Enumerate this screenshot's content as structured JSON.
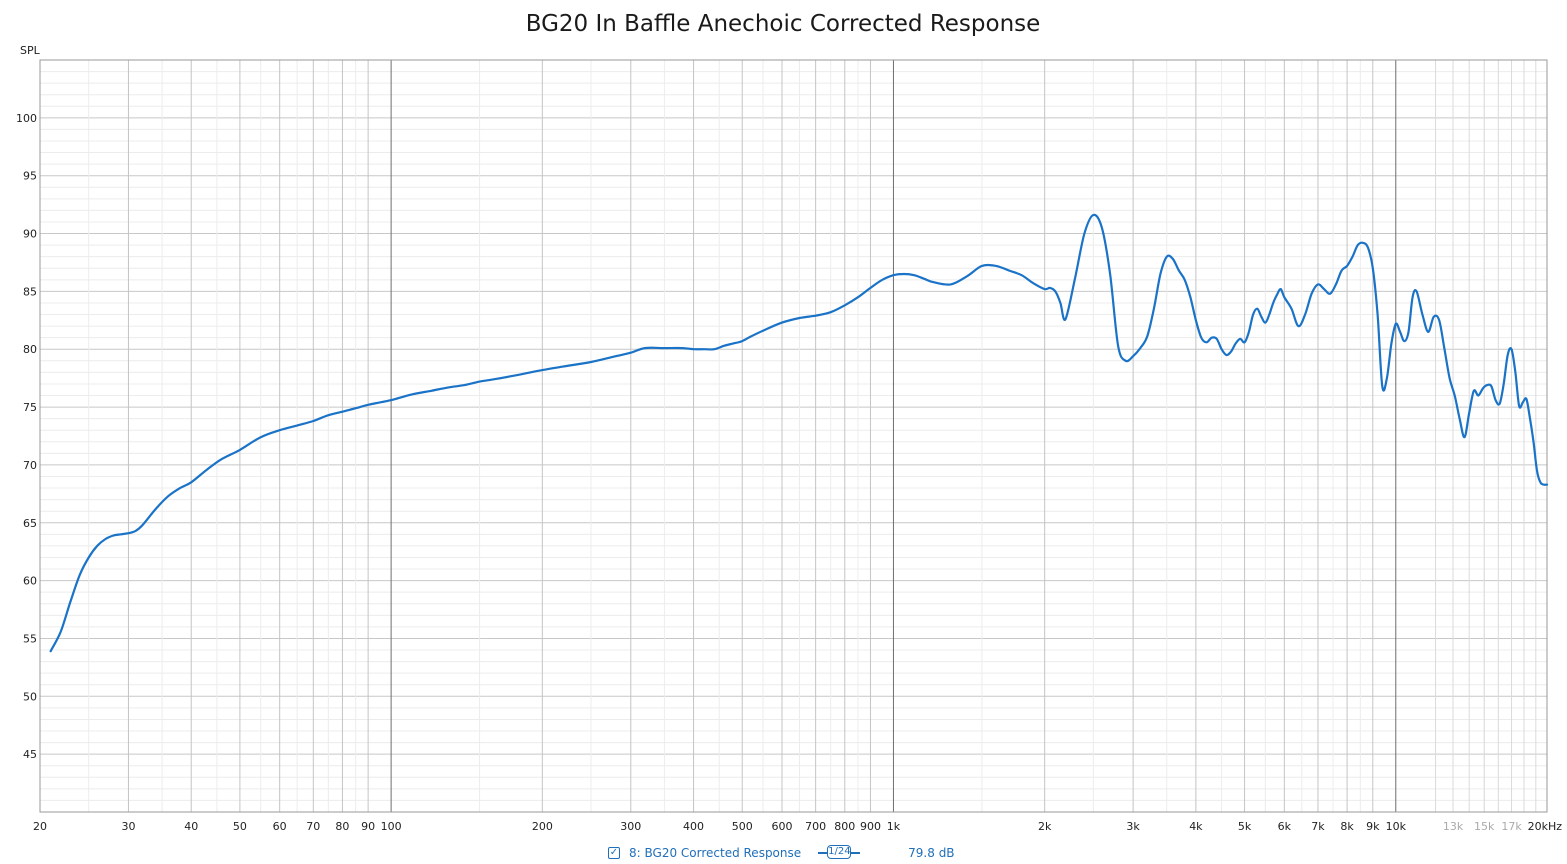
{
  "chart_data": {
    "type": "line",
    "title": "BG20 In Baffle Anechoic Corrected Response",
    "ylabel": "SPL",
    "xlabel": "",
    "x_scale": "log",
    "xlim": [
      20,
      20000
    ],
    "ylim": [
      40,
      105
    ],
    "grid": true,
    "y_ticks": [
      45,
      50,
      55,
      60,
      65,
      70,
      75,
      80,
      85,
      90,
      95,
      100
    ],
    "x_ticks": [
      {
        "v": 20,
        "label": "20"
      },
      {
        "v": 30,
        "label": "30"
      },
      {
        "v": 40,
        "label": "40"
      },
      {
        "v": 50,
        "label": "50"
      },
      {
        "v": 60,
        "label": "60"
      },
      {
        "v": 70,
        "label": "70"
      },
      {
        "v": 80,
        "label": "80"
      },
      {
        "v": 90,
        "label": "90"
      },
      {
        "v": 100,
        "label": "100"
      },
      {
        "v": 200,
        "label": "200"
      },
      {
        "v": 300,
        "label": "300"
      },
      {
        "v": 400,
        "label": "400"
      },
      {
        "v": 500,
        "label": "500"
      },
      {
        "v": 600,
        "label": "600"
      },
      {
        "v": 700,
        "label": "700"
      },
      {
        "v": 800,
        "label": "800"
      },
      {
        "v": 900,
        "label": "900"
      },
      {
        "v": 1000,
        "label": "1k"
      },
      {
        "v": 2000,
        "label": "2k"
      },
      {
        "v": 3000,
        "label": "3k"
      },
      {
        "v": 4000,
        "label": "4k"
      },
      {
        "v": 5000,
        "label": "5k"
      },
      {
        "v": 6000,
        "label": "6k"
      },
      {
        "v": 7000,
        "label": "7k"
      },
      {
        "v": 8000,
        "label": "8k"
      },
      {
        "v": 9000,
        "label": "9k"
      },
      {
        "v": 10000,
        "label": "10k"
      },
      {
        "v": 13000,
        "label": "13k",
        "light": true
      },
      {
        "v": 15000,
        "label": "15k",
        "light": true
      },
      {
        "v": 17000,
        "label": "17k",
        "light": true
      },
      {
        "v": 20000,
        "label": "20kHz"
      }
    ],
    "line_color": "#1a73c7",
    "series": [
      {
        "name": "8: BG20 Corrected Response",
        "x": [
          21,
          22,
          23,
          24,
          25,
          26,
          27,
          28,
          29,
          30,
          31,
          32,
          34,
          36,
          38,
          40,
          43,
          46,
          50,
          55,
          60,
          65,
          70,
          75,
          80,
          85,
          90,
          95,
          100,
          110,
          120,
          130,
          140,
          150,
          160,
          180,
          200,
          220,
          250,
          280,
          300,
          320,
          350,
          380,
          400,
          420,
          440,
          460,
          480,
          500,
          520,
          550,
          600,
          650,
          700,
          750,
          800,
          850,
          900,
          950,
          1000,
          1050,
          1100,
          1150,
          1200,
          1300,
          1400,
          1500,
          1600,
          1700,
          1800,
          1900,
          2000,
          2050,
          2100,
          2150,
          2200,
          2300,
          2400,
          2500,
          2600,
          2700,
          2800,
          2900,
          3000,
          3100,
          3200,
          3300,
          3400,
          3500,
          3600,
          3700,
          3800,
          3900,
          4000,
          4100,
          4200,
          4300,
          4400,
          4500,
          4600,
          4700,
          4800,
          4900,
          5000,
          5100,
          5200,
          5300,
          5400,
          5500,
          5600,
          5700,
          5800,
          5900,
          6000,
          6200,
          6400,
          6600,
          6800,
          7000,
          7200,
          7400,
          7600,
          7800,
          8000,
          8200,
          8400,
          8600,
          8800,
          9000,
          9200,
          9400,
          9600,
          9800,
          10000,
          10200,
          10400,
          10600,
          10800,
          11000,
          11300,
          11600,
          11900,
          12200,
          12500,
          12800,
          13100,
          13400,
          13700,
          14000,
          14300,
          14600,
          14900,
          15200,
          15500,
          15800,
          16100,
          16400,
          16700,
          17000,
          17300,
          17600,
          17900,
          18200,
          18500,
          18800,
          19100,
          19400,
          19700,
          20000
        ],
        "y": [
          53.9,
          55.6,
          58.2,
          60.5,
          62.0,
          63.0,
          63.6,
          63.9,
          64.0,
          64.1,
          64.3,
          64.8,
          66.2,
          67.3,
          68.0,
          68.5,
          69.6,
          70.5,
          71.3,
          72.4,
          73.0,
          73.4,
          73.8,
          74.3,
          74.6,
          74.9,
          75.2,
          75.4,
          75.6,
          76.1,
          76.4,
          76.7,
          76.9,
          77.2,
          77.4,
          77.8,
          78.2,
          78.5,
          78.9,
          79.4,
          79.7,
          80.1,
          80.1,
          80.1,
          80.0,
          80.0,
          80.0,
          80.3,
          80.5,
          80.7,
          81.1,
          81.6,
          82.3,
          82.7,
          82.9,
          83.2,
          83.8,
          84.5,
          85.3,
          86.0,
          86.4,
          86.5,
          86.4,
          86.1,
          85.8,
          85.6,
          86.3,
          87.2,
          87.2,
          86.8,
          86.4,
          85.7,
          85.2,
          85.3,
          85.0,
          84.0,
          82.6,
          86.2,
          90.0,
          91.6,
          90.5,
          86.5,
          80.3,
          79.0,
          79.4,
          80.1,
          81.1,
          83.5,
          86.5,
          88.0,
          87.8,
          86.8,
          86.0,
          84.5,
          82.5,
          81.0,
          80.6,
          81.0,
          80.9,
          80.0,
          79.5,
          79.8,
          80.5,
          80.9,
          80.6,
          81.5,
          83.0,
          83.5,
          82.8,
          82.3,
          83.0,
          84.0,
          84.7,
          85.2,
          84.5,
          83.5,
          82.0,
          83.0,
          84.8,
          85.6,
          85.2,
          84.8,
          85.6,
          86.8,
          87.2,
          88.0,
          89.0,
          89.2,
          88.8,
          87.0,
          83.0,
          76.8,
          77.5,
          80.5,
          82.2,
          81.5,
          80.7,
          81.5,
          84.5,
          85.0,
          83.0,
          81.5,
          82.8,
          82.5,
          80.0,
          77.5,
          76.0,
          74.0,
          72.4,
          74.5,
          76.4,
          76.0,
          76.6,
          76.9,
          76.8,
          75.6,
          75.3,
          77.0,
          79.5,
          80.0,
          78.0,
          75.1,
          75.4,
          75.7,
          74.0,
          72.0,
          69.5,
          68.5,
          68.3,
          68.3
        ]
      }
    ]
  },
  "legend": {
    "checkbox_glyph": "✓",
    "entry_label": "8: BG20 Corrected Response",
    "smoothing_label": "1/24",
    "value_label": "79.8 dB"
  }
}
